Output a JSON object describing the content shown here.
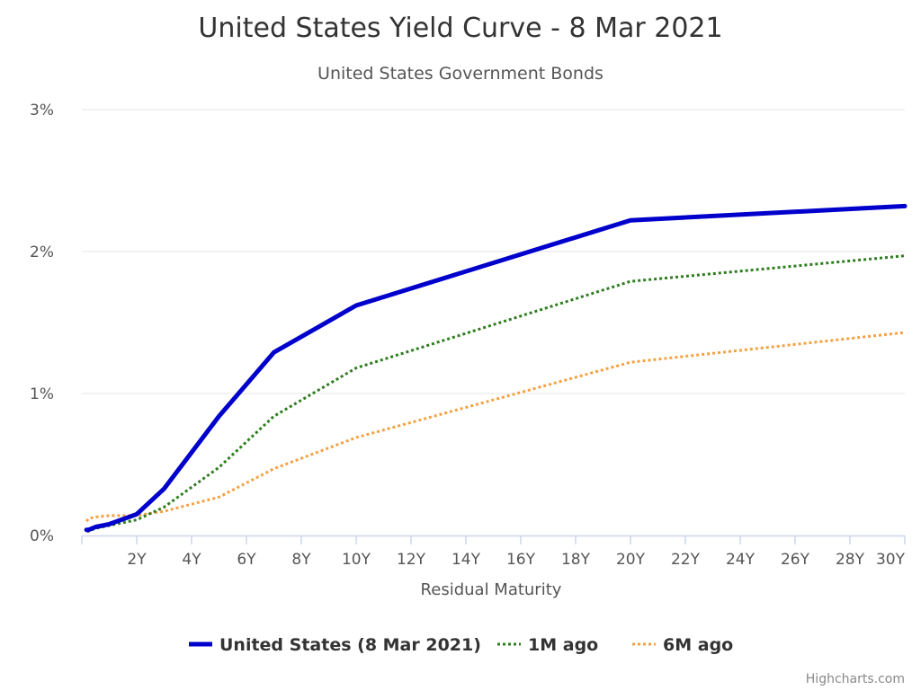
{
  "chart_data": {
    "type": "line",
    "title": "United States Yield Curve - 8 Mar 2021",
    "subtitle": "United States Government Bonds",
    "xlabel": "Residual Maturity",
    "ylabel": "",
    "xlim": [
      0,
      30
    ],
    "ylim": [
      0,
      3
    ],
    "x_ticks": [
      {
        "value": 2,
        "label": "2Y"
      },
      {
        "value": 4,
        "label": "4Y"
      },
      {
        "value": 6,
        "label": "6Y"
      },
      {
        "value": 8,
        "label": "8Y"
      },
      {
        "value": 10,
        "label": "10Y"
      },
      {
        "value": 12,
        "label": "12Y"
      },
      {
        "value": 14,
        "label": "14Y"
      },
      {
        "value": 16,
        "label": "16Y"
      },
      {
        "value": 18,
        "label": "18Y"
      },
      {
        "value": 20,
        "label": "20Y"
      },
      {
        "value": 22,
        "label": "22Y"
      },
      {
        "value": 24,
        "label": "24Y"
      },
      {
        "value": 26,
        "label": "26Y"
      },
      {
        "value": 28,
        "label": "28Y"
      },
      {
        "value": 30,
        "label": "30Y"
      }
    ],
    "y_ticks": [
      {
        "value": 0,
        "label": "0%"
      },
      {
        "value": 1,
        "label": "1%"
      },
      {
        "value": 2,
        "label": "2%"
      },
      {
        "value": 3,
        "label": "3%"
      }
    ],
    "grid": true,
    "legend_position": "bottom-center",
    "series": [
      {
        "name": "United States (8 Mar 2021)",
        "color": "#0000cc",
        "style": "solid",
        "points": [
          [
            0.17,
            0.04
          ],
          [
            0.25,
            0.04
          ],
          [
            0.5,
            0.06
          ],
          [
            1,
            0.08
          ],
          [
            2,
            0.15
          ],
          [
            3,
            0.33
          ],
          [
            5,
            0.84
          ],
          [
            7,
            1.29
          ],
          [
            10,
            1.62
          ],
          [
            20,
            2.22
          ],
          [
            30,
            2.32
          ]
        ]
      },
      {
        "name": "1M ago",
        "color": "#2e7d1f",
        "style": "dotted",
        "points": [
          [
            0.17,
            0.03
          ],
          [
            0.25,
            0.03
          ],
          [
            0.5,
            0.05
          ],
          [
            1,
            0.07
          ],
          [
            2,
            0.11
          ],
          [
            3,
            0.2
          ],
          [
            5,
            0.48
          ],
          [
            7,
            0.84
          ],
          [
            10,
            1.18
          ],
          [
            20,
            1.79
          ],
          [
            30,
            1.97
          ]
        ]
      },
      {
        "name": "6M ago",
        "color": "#f5a142",
        "style": "dotted",
        "points": [
          [
            0.17,
            0.1
          ],
          [
            0.25,
            0.12
          ],
          [
            0.5,
            0.13
          ],
          [
            1,
            0.14
          ],
          [
            2,
            0.14
          ],
          [
            3,
            0.17
          ],
          [
            5,
            0.27
          ],
          [
            7,
            0.47
          ],
          [
            10,
            0.69
          ],
          [
            20,
            1.22
          ],
          [
            30,
            1.43
          ]
        ]
      }
    ],
    "credits": "Highcharts.com"
  }
}
